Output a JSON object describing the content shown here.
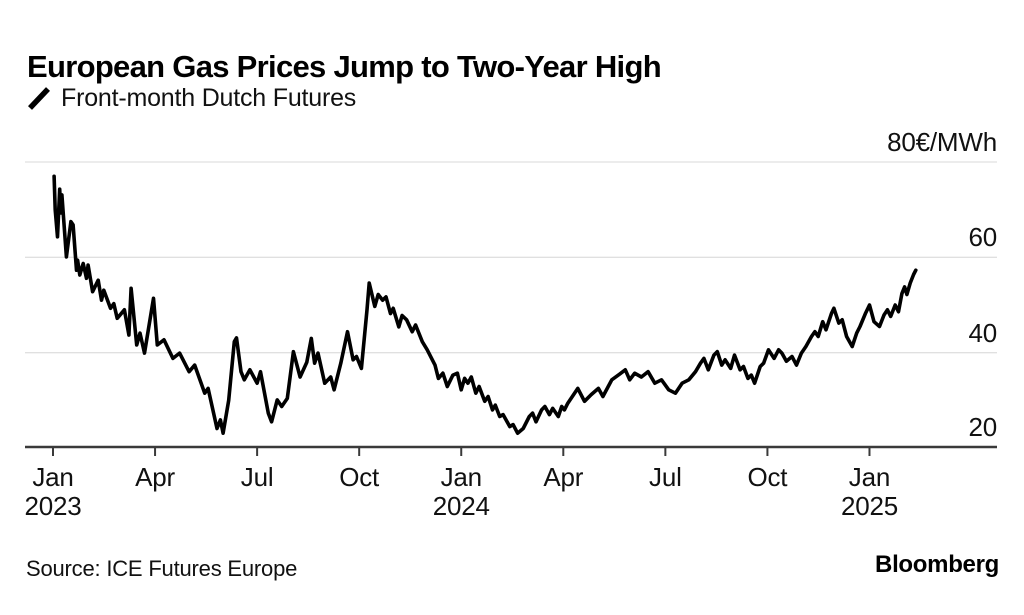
{
  "header": {
    "title": "European Gas Prices Jump to Two-Year High",
    "legend_label": "Front-month Dutch Futures"
  },
  "footer": {
    "source": "Source: ICE Futures Europe",
    "brand": "Bloomberg"
  },
  "colors": {
    "line": "#000000",
    "grid": "#e0e0e0",
    "axis": "#3a3a3a",
    "text": "#111111",
    "background": "#ffffff"
  },
  "chart_data": {
    "type": "line",
    "title": "European Gas Prices Jump to Two-Year High",
    "series_name": "Front-month Dutch Futures",
    "unit": "€/MWh",
    "ylim": [
      20,
      80
    ],
    "grid": true,
    "legend_position": "top-left",
    "yticks": [
      {
        "label": "80€/MWh",
        "value": 80
      },
      {
        "label": "60",
        "value": 60
      },
      {
        "label": "40",
        "value": 40
      },
      {
        "label": "20",
        "value": 20
      }
    ],
    "xticks": [
      {
        "label": "Jan",
        "year": "2023",
        "month_offset": 0
      },
      {
        "label": "Apr",
        "month_offset": 3
      },
      {
        "label": "Jul",
        "month_offset": 6
      },
      {
        "label": "Oct",
        "month_offset": 9
      },
      {
        "label": "Jan",
        "year": "2024",
        "month_offset": 12
      },
      {
        "label": "Apr",
        "month_offset": 15
      },
      {
        "label": "Jul",
        "month_offset": 18
      },
      {
        "label": "Oct",
        "month_offset": 21
      },
      {
        "label": "Jan",
        "year": "2025",
        "month_offset": 24
      }
    ],
    "points": [
      [
        "2023-01-02",
        77.0
      ],
      [
        "2023-01-03",
        70.0
      ],
      [
        "2023-01-05",
        64.3
      ],
      [
        "2023-01-07",
        74.3
      ],
      [
        "2023-01-08",
        69.3
      ],
      [
        "2023-01-09",
        73.1
      ],
      [
        "2023-01-13",
        60.1
      ],
      [
        "2023-01-17",
        67.5
      ],
      [
        "2023-01-19",
        66.8
      ],
      [
        "2023-01-22",
        57.3
      ],
      [
        "2023-01-23",
        59.4
      ],
      [
        "2023-01-25",
        56.3
      ],
      [
        "2023-01-28",
        58.7
      ],
      [
        "2023-01-31",
        55.6
      ],
      [
        "2023-02-02",
        58.4
      ],
      [
        "2023-02-06",
        52.8
      ],
      [
        "2023-02-11",
        55.2
      ],
      [
        "2023-02-14",
        51.0
      ],
      [
        "2023-02-16",
        53.1
      ],
      [
        "2023-02-22",
        49.3
      ],
      [
        "2023-02-25",
        50.3
      ],
      [
        "2023-02-28",
        47.2
      ],
      [
        "2023-03-04",
        49.0
      ],
      [
        "2023-03-08",
        43.7
      ],
      [
        "2023-03-10",
        53.5
      ],
      [
        "2023-03-15",
        41.6
      ],
      [
        "2023-03-18",
        44.1
      ],
      [
        "2023-03-22",
        39.9
      ],
      [
        "2023-03-30",
        51.4
      ],
      [
        "2023-04-03",
        41.6
      ],
      [
        "2023-04-09",
        42.7
      ],
      [
        "2023-04-17",
        38.8
      ],
      [
        "2023-04-23",
        39.9
      ],
      [
        "2023-05-01",
        36.0
      ],
      [
        "2023-05-06",
        37.4
      ],
      [
        "2023-05-15",
        31.5
      ],
      [
        "2023-05-18",
        32.5
      ],
      [
        "2023-05-26",
        24.1
      ],
      [
        "2023-05-29",
        25.9
      ],
      [
        "2023-06-01",
        23.1
      ],
      [
        "2023-06-06",
        30.0
      ],
      [
        "2023-06-11",
        42.3
      ],
      [
        "2023-06-13",
        43.1
      ],
      [
        "2023-06-17",
        36.0
      ],
      [
        "2023-06-20",
        34.3
      ],
      [
        "2023-06-25",
        36.4
      ],
      [
        "2023-07-01",
        33.6
      ],
      [
        "2023-07-04",
        36.0
      ],
      [
        "2023-07-11",
        27.3
      ],
      [
        "2023-07-14",
        25.5
      ],
      [
        "2023-07-19",
        30.1
      ],
      [
        "2023-07-23",
        28.7
      ],
      [
        "2023-07-28",
        30.4
      ],
      [
        "2023-08-03",
        40.2
      ],
      [
        "2023-08-09",
        34.9
      ],
      [
        "2023-08-15",
        38.0
      ],
      [
        "2023-08-19",
        43.0
      ],
      [
        "2023-08-22",
        37.8
      ],
      [
        "2023-08-25",
        39.9
      ],
      [
        "2023-08-31",
        33.6
      ],
      [
        "2023-09-06",
        34.9
      ],
      [
        "2023-09-09",
        32.2
      ],
      [
        "2023-09-15",
        37.8
      ],
      [
        "2023-09-21",
        44.4
      ],
      [
        "2023-09-26",
        38.5
      ],
      [
        "2023-09-29",
        39.2
      ],
      [
        "2023-10-03",
        36.7
      ],
      [
        "2023-10-08",
        49.0
      ],
      [
        "2023-10-10",
        54.6
      ],
      [
        "2023-10-15",
        49.7
      ],
      [
        "2023-10-18",
        52.2
      ],
      [
        "2023-10-22",
        51.0
      ],
      [
        "2023-10-25",
        51.7
      ],
      [
        "2023-10-29",
        48.2
      ],
      [
        "2023-11-01",
        49.3
      ],
      [
        "2023-11-06",
        45.4
      ],
      [
        "2023-11-09",
        47.8
      ],
      [
        "2023-11-13",
        46.9
      ],
      [
        "2023-11-18",
        44.4
      ],
      [
        "2023-11-21",
        45.8
      ],
      [
        "2023-11-27",
        42.3
      ],
      [
        "2023-12-01",
        40.6
      ],
      [
        "2023-12-08",
        37.4
      ],
      [
        "2023-12-11",
        34.6
      ],
      [
        "2023-12-15",
        35.7
      ],
      [
        "2023-12-19",
        32.9
      ],
      [
        "2023-12-24",
        35.3
      ],
      [
        "2023-12-28",
        35.7
      ],
      [
        "2024-01-01",
        32.2
      ],
      [
        "2024-01-04",
        34.6
      ],
      [
        "2024-01-07",
        33.6
      ],
      [
        "2024-01-10",
        34.9
      ],
      [
        "2024-01-14",
        31.5
      ],
      [
        "2024-01-17",
        32.9
      ],
      [
        "2024-01-22",
        29.8
      ],
      [
        "2024-01-25",
        30.8
      ],
      [
        "2024-01-29",
        28.0
      ],
      [
        "2024-02-01",
        29.0
      ],
      [
        "2024-02-05",
        26.6
      ],
      [
        "2024-02-08",
        27.0
      ],
      [
        "2024-02-14",
        24.5
      ],
      [
        "2024-02-17",
        24.9
      ],
      [
        "2024-02-21",
        23.1
      ],
      [
        "2024-02-26",
        24.1
      ],
      [
        "2024-03-01",
        26.6
      ],
      [
        "2024-03-04",
        27.3
      ],
      [
        "2024-03-07",
        25.5
      ],
      [
        "2024-03-12",
        28.0
      ],
      [
        "2024-03-15",
        28.7
      ],
      [
        "2024-03-19",
        27.0
      ],
      [
        "2024-03-22",
        28.3
      ],
      [
        "2024-03-27",
        26.6
      ],
      [
        "2024-03-30",
        28.7
      ],
      [
        "2024-04-02",
        28.0
      ],
      [
        "2024-04-05",
        29.4
      ],
      [
        "2024-04-14",
        32.5
      ],
      [
        "2024-04-20",
        29.8
      ],
      [
        "2024-04-26",
        31.2
      ],
      [
        "2024-05-02",
        32.5
      ],
      [
        "2024-05-06",
        30.8
      ],
      [
        "2024-05-14",
        34.3
      ],
      [
        "2024-05-21",
        35.5
      ],
      [
        "2024-05-26",
        36.4
      ],
      [
        "2024-05-30",
        34.3
      ],
      [
        "2024-06-04",
        35.7
      ],
      [
        "2024-06-10",
        34.9
      ],
      [
        "2024-06-16",
        36.0
      ],
      [
        "2024-06-22",
        33.6
      ],
      [
        "2024-06-28",
        34.3
      ],
      [
        "2024-07-04",
        32.2
      ],
      [
        "2024-07-10",
        31.5
      ],
      [
        "2024-07-16",
        33.6
      ],
      [
        "2024-07-22",
        34.3
      ],
      [
        "2024-07-28",
        36.0
      ],
      [
        "2024-08-02",
        37.8
      ],
      [
        "2024-08-05",
        38.8
      ],
      [
        "2024-08-09",
        36.4
      ],
      [
        "2024-08-14",
        39.5
      ],
      [
        "2024-08-17",
        40.2
      ],
      [
        "2024-08-21",
        37.4
      ],
      [
        "2024-08-24",
        38.5
      ],
      [
        "2024-08-29",
        36.7
      ],
      [
        "2024-09-02",
        39.5
      ],
      [
        "2024-09-07",
        36.4
      ],
      [
        "2024-09-10",
        37.1
      ],
      [
        "2024-09-14",
        34.6
      ],
      [
        "2024-09-17",
        35.3
      ],
      [
        "2024-09-20",
        33.6
      ],
      [
        "2024-09-25",
        37.1
      ],
      [
        "2024-09-28",
        37.8
      ],
      [
        "2024-10-02",
        40.6
      ],
      [
        "2024-10-07",
        38.8
      ],
      [
        "2024-10-11",
        40.6
      ],
      [
        "2024-10-14",
        39.9
      ],
      [
        "2024-10-18",
        38.2
      ],
      [
        "2024-10-23",
        39.2
      ],
      [
        "2024-10-27",
        37.4
      ],
      [
        "2024-11-01",
        39.9
      ],
      [
        "2024-11-05",
        41.3
      ],
      [
        "2024-11-10",
        43.4
      ],
      [
        "2024-11-13",
        44.4
      ],
      [
        "2024-11-16",
        43.4
      ],
      [
        "2024-11-20",
        46.5
      ],
      [
        "2024-11-23",
        44.8
      ],
      [
        "2024-11-28",
        48.3
      ],
      [
        "2024-11-30",
        49.3
      ],
      [
        "2024-12-04",
        46.2
      ],
      [
        "2024-12-07",
        46.9
      ],
      [
        "2024-12-11",
        43.4
      ],
      [
        "2024-12-16",
        41.3
      ],
      [
        "2024-12-20",
        44.1
      ],
      [
        "2024-12-23",
        45.5
      ],
      [
        "2024-12-28",
        48.3
      ],
      [
        "2025-01-01",
        50.0
      ],
      [
        "2025-01-05",
        46.5
      ],
      [
        "2025-01-10",
        45.5
      ],
      [
        "2025-01-14",
        47.9
      ],
      [
        "2025-01-17",
        49.0
      ],
      [
        "2025-01-20",
        47.6
      ],
      [
        "2025-01-24",
        50.0
      ],
      [
        "2025-01-27",
        48.6
      ],
      [
        "2025-01-30",
        52.4
      ],
      [
        "2025-02-02",
        53.8
      ],
      [
        "2025-02-04",
        52.2
      ],
      [
        "2025-02-07",
        54.6
      ],
      [
        "2025-02-10",
        56.4
      ],
      [
        "2025-02-12",
        57.3
      ]
    ]
  }
}
